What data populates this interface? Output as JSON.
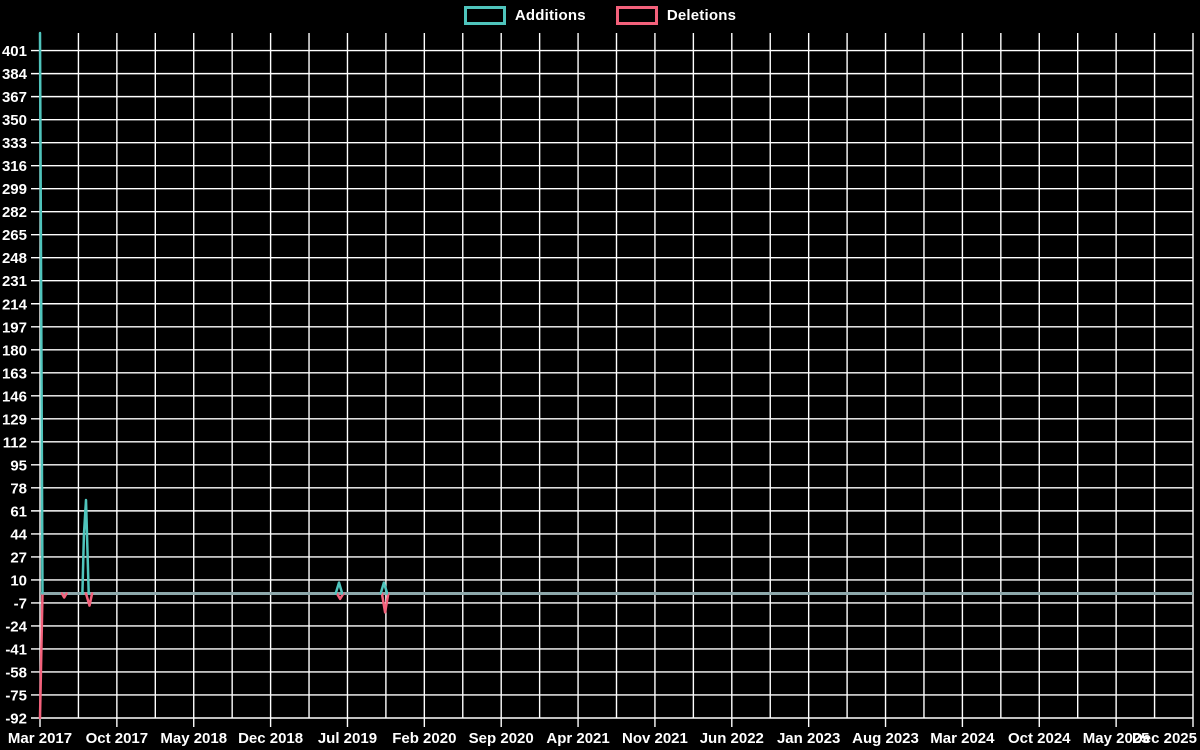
{
  "chart_data": {
    "type": "line",
    "title": "",
    "xlabel": "",
    "ylabel": "",
    "legend_position": "top-center",
    "background_color": "#000000",
    "grid_color": "#ffffff",
    "text_color": "#ffffff",
    "zero_line_color": "#8da8ab",
    "grid": true,
    "y_axis": {
      "min": -92,
      "max": 414,
      "tick_step": 17,
      "tick_values": [
        401,
        384,
        367,
        350,
        333,
        316,
        299,
        282,
        265,
        248,
        231,
        214,
        197,
        180,
        163,
        146,
        129,
        112,
        95,
        78,
        61,
        44,
        27,
        10,
        -7,
        -24,
        -41,
        -58,
        -75,
        -92
      ]
    },
    "x_axis": {
      "tick_labels": [
        "Mar 2017",
        "Oct 2017",
        "May 2018",
        "Dec 2018",
        "Jul 2019",
        "Feb 2020",
        "Sep 2020",
        "Apr 2021",
        "Nov 2021",
        "Jun 2022",
        "Jan 2023",
        "Aug 2023",
        "Mar 2024",
        "Oct 2024",
        "May 2025",
        "Dec 2025"
      ],
      "months_between_labels": 7,
      "minor_gridlines_between_labels": 1
    },
    "baseline_value": 0,
    "series": [
      {
        "name": "Deletions",
        "color": "#f3617b",
        "baseline": 0,
        "spikes": [
          {
            "approx_date": "Mar 2017",
            "points": [
              [
                0.0,
                -92
              ],
              [
                0.0022,
                0
              ]
            ]
          },
          {
            "approx_date": "Jun 2017",
            "points": [
              [
                0.019,
                0
              ],
              [
                0.021,
                -3
              ],
              [
                0.023,
                0
              ]
            ]
          },
          {
            "approx_date": "Oct 2017",
            "points": [
              [
                0.0399,
                0
              ],
              [
                0.0429,
                -9
              ],
              [
                0.0452,
                0
              ]
            ]
          },
          {
            "approx_date": "Jun 2019",
            "points": [
              [
                0.2575,
                0
              ],
              [
                0.2603,
                -4
              ],
              [
                0.2631,
                0
              ]
            ]
          },
          {
            "approx_date": "Nov 2019",
            "points": [
              [
                0.2965,
                0
              ],
              [
                0.2993,
                -14
              ],
              [
                0.3021,
                0
              ]
            ]
          }
        ]
      },
      {
        "name": "Additions",
        "color": "#4fc4bc",
        "baseline": 0,
        "spikes": [
          {
            "approx_date": "Mar 2017",
            "points": [
              [
                0.0,
                414
              ],
              [
                0.0022,
                0
              ]
            ]
          },
          {
            "approx_date": "Oct 2017",
            "points": [
              [
                0.0368,
                0
              ],
              [
                0.0381,
                43
              ],
              [
                0.0399,
                69
              ],
              [
                0.0422,
                0
              ]
            ]
          },
          {
            "approx_date": "Jun 2019",
            "points": [
              [
                0.2565,
                0
              ],
              [
                0.2593,
                8
              ],
              [
                0.2621,
                0
              ]
            ]
          },
          {
            "approx_date": "Nov 2019",
            "points": [
              [
                0.2955,
                0
              ],
              [
                0.2983,
                8
              ],
              [
                0.3011,
                0
              ]
            ]
          }
        ]
      }
    ]
  }
}
